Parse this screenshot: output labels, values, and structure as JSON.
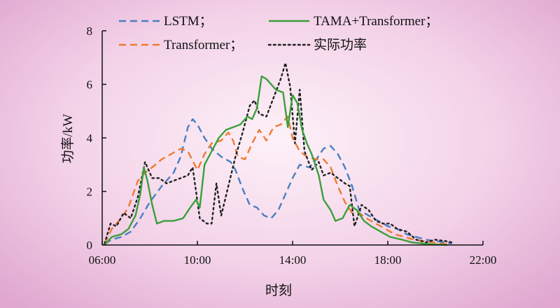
{
  "chart_data": {
    "type": "line",
    "xlabel": "时刻",
    "ylabel": "功率/kW",
    "xlim": [
      6,
      22
    ],
    "ylim": [
      0,
      8
    ],
    "xticks": [
      6,
      10,
      14,
      18,
      22
    ],
    "xtick_labels": [
      "06:00",
      "10:00",
      "14:00",
      "18:00",
      "22:00"
    ],
    "yticks": [
      0,
      2,
      4,
      6,
      8
    ],
    "ytick_labels": [
      "0",
      "2",
      "4",
      "6",
      "8"
    ],
    "grid": false,
    "legend_position": "top",
    "series": [
      {
        "name": "LSTM；",
        "color": "#4a7fc1",
        "dash": "dashed",
        "points": [
          [
            6.1,
            0.05
          ],
          [
            6.4,
            0.2
          ],
          [
            6.8,
            0.3
          ],
          [
            7.2,
            0.5
          ],
          [
            7.6,
            1.0
          ],
          [
            8.0,
            1.6
          ],
          [
            8.5,
            2.2
          ],
          [
            9.0,
            2.7
          ],
          [
            9.3,
            3.3
          ],
          [
            9.6,
            4.4
          ],
          [
            9.8,
            4.7
          ],
          [
            10.0,
            4.5
          ],
          [
            10.3,
            4.0
          ],
          [
            10.6,
            3.6
          ],
          [
            11.0,
            3.3
          ],
          [
            11.4,
            3.1
          ],
          [
            11.6,
            2.8
          ],
          [
            11.9,
            2.1
          ],
          [
            12.2,
            1.5
          ],
          [
            12.5,
            1.4
          ],
          [
            12.8,
            1.1
          ],
          [
            13.1,
            1.0
          ],
          [
            13.4,
            1.3
          ],
          [
            13.7,
            1.9
          ],
          [
            14.0,
            2.5
          ],
          [
            14.3,
            3.0
          ],
          [
            14.7,
            2.9
          ],
          [
            15.0,
            3.2
          ],
          [
            15.3,
            3.6
          ],
          [
            15.6,
            3.7
          ],
          [
            15.9,
            3.4
          ],
          [
            16.2,
            2.9
          ],
          [
            16.5,
            2.2
          ],
          [
            16.8,
            1.3
          ],
          [
            17.2,
            1.1
          ],
          [
            17.6,
            0.9
          ],
          [
            18.0,
            0.7
          ],
          [
            18.4,
            0.6
          ],
          [
            18.8,
            0.4
          ],
          [
            19.2,
            0.3
          ],
          [
            19.6,
            0.2
          ],
          [
            20.0,
            0.15
          ],
          [
            20.4,
            0.1
          ],
          [
            20.7,
            0.05
          ]
        ]
      },
      {
        "name": "TAMA+Transformer；",
        "color": "#3aa03a",
        "dash": "solid",
        "points": [
          [
            6.1,
            0.0
          ],
          [
            6.4,
            0.3
          ],
          [
            6.8,
            0.4
          ],
          [
            7.1,
            0.6
          ],
          [
            7.4,
            1.1
          ],
          [
            7.6,
            1.9
          ],
          [
            7.75,
            2.9
          ],
          [
            7.9,
            2.4
          ],
          [
            8.1,
            1.5
          ],
          [
            8.3,
            0.8
          ],
          [
            8.6,
            0.9
          ],
          [
            9.0,
            0.9
          ],
          [
            9.4,
            1.0
          ],
          [
            9.7,
            1.4
          ],
          [
            9.95,
            1.7
          ],
          [
            10.1,
            1.4
          ],
          [
            10.3,
            3.0
          ],
          [
            10.6,
            3.5
          ],
          [
            10.9,
            4.0
          ],
          [
            11.2,
            4.3
          ],
          [
            11.5,
            4.4
          ],
          [
            11.8,
            4.5
          ],
          [
            12.1,
            4.8
          ],
          [
            12.3,
            4.7
          ],
          [
            12.5,
            5.1
          ],
          [
            12.7,
            6.3
          ],
          [
            12.9,
            6.2
          ],
          [
            13.1,
            6.0
          ],
          [
            13.3,
            5.8
          ],
          [
            13.6,
            5.7
          ],
          [
            13.8,
            4.4
          ],
          [
            14.0,
            5.6
          ],
          [
            14.2,
            5.3
          ],
          [
            14.4,
            4.3
          ],
          [
            14.6,
            3.8
          ],
          [
            14.8,
            3.4
          ],
          [
            15.1,
            2.6
          ],
          [
            15.3,
            1.7
          ],
          [
            15.6,
            1.3
          ],
          [
            15.8,
            0.9
          ],
          [
            16.1,
            1.0
          ],
          [
            16.4,
            1.5
          ],
          [
            16.7,
            1.3
          ],
          [
            17.0,
            0.9
          ],
          [
            17.3,
            0.7
          ],
          [
            17.7,
            0.5
          ],
          [
            18.1,
            0.3
          ],
          [
            18.6,
            0.2
          ],
          [
            19.0,
            0.1
          ],
          [
            19.5,
            0.05
          ],
          [
            20.0,
            0.02
          ],
          [
            20.5,
            0.0
          ]
        ]
      },
      {
        "name": "Transformer；",
        "color": "#f07a30",
        "dash": "dashed",
        "points": [
          [
            6.1,
            0.05
          ],
          [
            6.4,
            0.6
          ],
          [
            6.8,
            1.0
          ],
          [
            7.1,
            1.4
          ],
          [
            7.5,
            2.4
          ],
          [
            7.8,
            2.7
          ],
          [
            8.1,
            2.9
          ],
          [
            8.5,
            3.2
          ],
          [
            8.9,
            3.4
          ],
          [
            9.3,
            3.6
          ],
          [
            9.6,
            3.5
          ],
          [
            10.0,
            2.8
          ],
          [
            10.3,
            3.4
          ],
          [
            10.6,
            3.8
          ],
          [
            11.0,
            3.9
          ],
          [
            11.3,
            4.2
          ],
          [
            11.5,
            3.9
          ],
          [
            11.7,
            3.3
          ],
          [
            12.0,
            3.2
          ],
          [
            12.3,
            3.8
          ],
          [
            12.6,
            4.3
          ],
          [
            12.9,
            3.9
          ],
          [
            13.2,
            4.4
          ],
          [
            13.5,
            4.5
          ],
          [
            13.8,
            4.8
          ],
          [
            14.0,
            4.0
          ],
          [
            14.3,
            3.5
          ],
          [
            14.6,
            3.3
          ],
          [
            15.0,
            3.2
          ],
          [
            15.3,
            3.2
          ],
          [
            15.6,
            2.9
          ],
          [
            15.9,
            2.2
          ],
          [
            16.2,
            1.6
          ],
          [
            16.5,
            1.2
          ],
          [
            16.8,
            1.2
          ],
          [
            17.1,
            1.0
          ],
          [
            17.5,
            0.8
          ],
          [
            17.9,
            0.6
          ],
          [
            18.3,
            0.4
          ],
          [
            18.7,
            0.3
          ],
          [
            19.1,
            0.2
          ],
          [
            19.5,
            0.15
          ],
          [
            19.9,
            0.1
          ],
          [
            20.3,
            0.05
          ],
          [
            20.6,
            0.02
          ]
        ]
      },
      {
        "name": "实际功率",
        "color": "#222222",
        "dash": "dotted",
        "points": [
          [
            6.1,
            0.05
          ],
          [
            6.35,
            0.8
          ],
          [
            6.6,
            0.7
          ],
          [
            6.9,
            1.2
          ],
          [
            7.2,
            1.0
          ],
          [
            7.5,
            1.8
          ],
          [
            7.8,
            3.1
          ],
          [
            8.1,
            2.5
          ],
          [
            8.4,
            2.5
          ],
          [
            8.7,
            2.3
          ],
          [
            9.0,
            2.4
          ],
          [
            9.3,
            2.5
          ],
          [
            9.6,
            2.6
          ],
          [
            9.8,
            2.9
          ],
          [
            10.1,
            1.0
          ],
          [
            10.4,
            0.8
          ],
          [
            10.6,
            0.8
          ],
          [
            10.8,
            2.3
          ],
          [
            11.0,
            1.1
          ],
          [
            11.3,
            2.2
          ],
          [
            11.6,
            3.3
          ],
          [
            11.9,
            4.2
          ],
          [
            12.2,
            5.2
          ],
          [
            12.4,
            5.4
          ],
          [
            12.6,
            4.9
          ],
          [
            12.9,
            4.8
          ],
          [
            13.2,
            5.5
          ],
          [
            13.5,
            6.2
          ],
          [
            13.7,
            6.8
          ],
          [
            13.9,
            5.9
          ],
          [
            14.1,
            3.8
          ],
          [
            14.3,
            5.8
          ],
          [
            14.5,
            3.5
          ],
          [
            14.8,
            2.8
          ],
          [
            15.1,
            3.1
          ],
          [
            15.3,
            2.6
          ],
          [
            15.6,
            2.7
          ],
          [
            15.9,
            2.5
          ],
          [
            16.2,
            2.3
          ],
          [
            16.4,
            2.2
          ],
          [
            16.6,
            0.7
          ],
          [
            16.9,
            1.5
          ],
          [
            17.2,
            1.3
          ],
          [
            17.5,
            0.9
          ],
          [
            17.8,
            0.8
          ],
          [
            18.1,
            0.8
          ],
          [
            18.4,
            0.6
          ],
          [
            18.8,
            0.5
          ],
          [
            19.2,
            0.2
          ],
          [
            19.6,
            0.1
          ],
          [
            20.0,
            0.2
          ],
          [
            20.4,
            0.15
          ],
          [
            20.7,
            0.1
          ]
        ]
      }
    ]
  }
}
